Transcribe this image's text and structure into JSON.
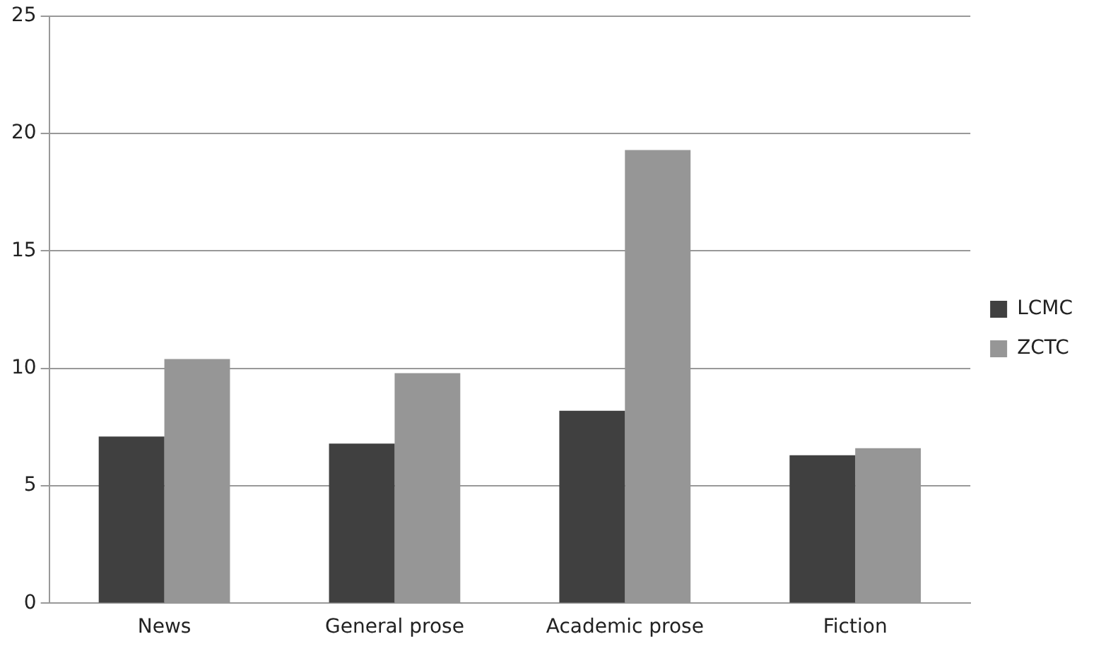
{
  "chart_data": {
    "type": "bar",
    "categories": [
      "News",
      "General prose",
      "Academic prose",
      "Fiction"
    ],
    "series": [
      {
        "name": "LCMC",
        "color": "#404040",
        "values": [
          7.1,
          6.8,
          8.2,
          6.3
        ]
      },
      {
        "name": "ZCTC",
        "color": "#969696",
        "values": [
          10.4,
          9.8,
          19.3,
          6.6
        ]
      }
    ],
    "ylim": [
      0,
      25
    ],
    "yticks": [
      0,
      5,
      10,
      15,
      20,
      25
    ],
    "grid": "y",
    "legend": "right"
  }
}
